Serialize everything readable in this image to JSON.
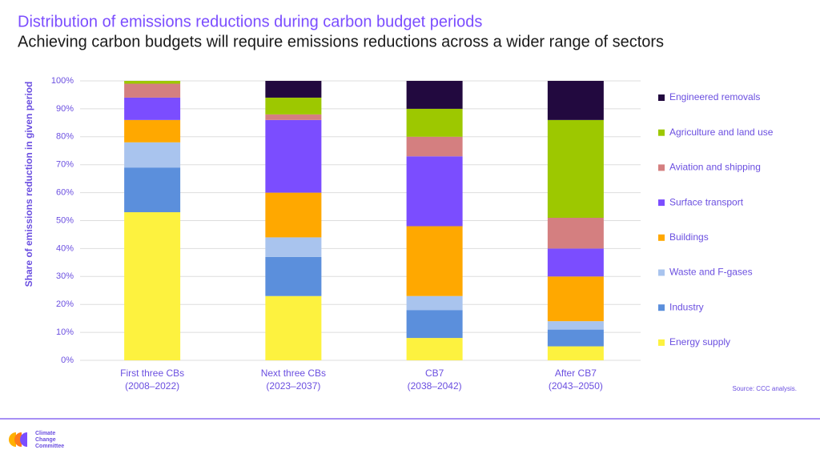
{
  "chart_data": {
    "type": "stacked_bar",
    "title": "Distribution of emissions reductions during carbon budget periods",
    "subtitle": "Achieving carbon budgets will require emissions reductions across a wider range of sectors",
    "y_label": "Share of emissions reduction in given period",
    "source": "Source: CCC analysis.",
    "categories": [
      [
        "First three CBs",
        "(2008–2022)"
      ],
      [
        "Next three CBs",
        "(2023–2037)"
      ],
      [
        "CB7",
        "(2038–2042)"
      ],
      [
        "After CB7",
        "(2043–2050)"
      ]
    ],
    "series": [
      {
        "name": "Energy supply",
        "color": "#fdf23f",
        "values": [
          53,
          23,
          8,
          5
        ]
      },
      {
        "name": "Industry",
        "color": "#5b8fdc",
        "values": [
          16,
          14,
          10,
          6
        ]
      },
      {
        "name": "Waste and F-gases",
        "color": "#a9c4ee",
        "values": [
          9,
          7,
          5,
          3
        ]
      },
      {
        "name": "Buildings",
        "color": "#ffa800",
        "values": [
          8,
          16,
          25,
          16
        ]
      },
      {
        "name": "Surface transport",
        "color": "#7b4dff",
        "values": [
          8,
          26,
          25,
          10
        ]
      },
      {
        "name": "Aviation and shipping",
        "color": "#d47f80",
        "values": [
          5,
          2,
          7,
          11
        ]
      },
      {
        "name": "Agriculture and land use",
        "color": "#9dc800",
        "values": [
          1,
          6,
          10,
          35
        ]
      },
      {
        "name": "Engineered removals",
        "color": "#22093f",
        "values": [
          0,
          6,
          10,
          14
        ]
      }
    ],
    "ylim": [
      0,
      100
    ],
    "yticks": [
      {
        "value": 0,
        "label": "0%"
      },
      {
        "value": 10,
        "label": "10%"
      },
      {
        "value": 20,
        "label": "20%"
      },
      {
        "value": 30,
        "label": "30%"
      },
      {
        "value": 40,
        "label": "40%"
      },
      {
        "value": 50,
        "label": "50%"
      },
      {
        "value": 60,
        "label": "60%"
      },
      {
        "value": 70,
        "label": "70%"
      },
      {
        "value": 80,
        "label": "80%"
      },
      {
        "value": 90,
        "label": "90%"
      },
      {
        "value": 100,
        "label": "100%"
      }
    ],
    "grid": true
  },
  "logo": {
    "lines": [
      "Climate",
      "Change",
      "Committee"
    ]
  }
}
